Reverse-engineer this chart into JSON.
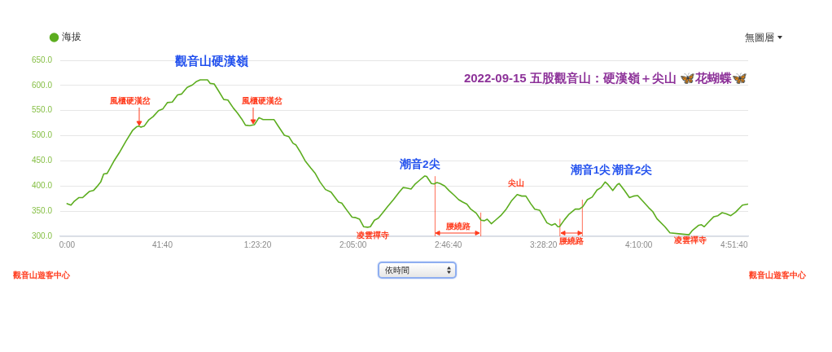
{
  "chart_data": {
    "type": "line",
    "title": "2022-09-15 五股觀音山：硬漢嶺＋尖山 🦋花蝴蝶🦋",
    "x": [
      0,
      1.7,
      3.2,
      5.2,
      6.8,
      8.0,
      9.7,
      11.5,
      13.1,
      14.7,
      16.0,
      17.5,
      20.4,
      22.8,
      25.7,
      28.7,
      30.5,
      31.4,
      32.3,
      33.7,
      35.6,
      37.6,
      40.0,
      41.8,
      43.9,
      46.0,
      48.3,
      50.1,
      52.5,
      54.8,
      56.6,
      58.2,
      61.4,
      62.6,
      64.3,
      66.1,
      68.5,
      70.3,
      72.7,
      74.5,
      76.4,
      78.0,
      79.8,
      81.9,
      83.9,
      85.7,
      90.5,
      92.2,
      95.0,
      97.0,
      98.8,
      100.0,
      101.8,
      104.1,
      106.5,
      108.5,
      110.6,
      113.0,
      115.4,
      117.2,
      118.7,
      120.1,
      122.3,
      124.6,
      126.3,
      127.9,
      129.7,
      131.4,
      132.6,
      134.4,
      136.1,
      137.9,
      140.3,
      142.7,
      145.1,
      146.9,
      148.4,
      150.4,
      152.0,
      154.0,
      156.4,
      157.2,
      159.3,
      160.5,
      161.7,
      163.1,
      165.1,
      167.0,
      169.4,
      171.2,
      173.0,
      174.8,
      176.5,
      178.9,
      181.0,
      182.5,
      183.7,
      185.5,
      187.3,
      189.6,
      192.0,
      194.4,
      196.8,
      198.8,
      200.6,
      202.7,
      204.5,
      206.6,
      208.0,
      209.8,
      211.8,
      213.4,
      214.6,
      215.3,
      217.5,
      219.5,
      222.2,
      224.0,
      225.5,
      227.5,
      229.6,
      231.7,
      233.5,
      235.3,
      236.5,
      238.6,
      240.6,
      241.4,
      243.6,
      245.9,
      247.7,
      249.5,
      251.3,
      254.3,
      256.1,
      257.9,
      261.4,
      263.6,
      267.4,
      271.9,
      273.3,
      276.2,
      277.4,
      278.6,
      280.4,
      282.8,
      284.6,
      286.4,
      288.1,
      290.2,
      292.3,
      295.3,
      297.7
    ],
    "series": [
      {
        "name": "海拔",
        "color": "#5cad1f",
        "values": [
          365,
          362,
          370,
          377,
          377,
          382,
          389,
          391,
          399,
          408,
          424,
          425,
          449,
          466,
          489,
          511,
          518,
          519,
          517,
          519,
          531,
          538,
          550,
          553,
          566,
          567,
          581,
          583,
          596,
          601,
          608,
          611,
          611,
          604,
          603,
          590,
          572,
          571,
          555,
          545,
          533,
          521,
          520,
          522,
          536,
          532,
          532,
          520,
          501,
          498,
          485,
          482,
          469,
          450,
          436,
          425,
          408,
          393,
          388,
          377,
          368,
          366,
          352,
          338,
          337,
          334,
          319,
          318,
          319,
          332,
          336,
          346,
          360,
          373,
          387,
          397,
          396,
          394,
          403,
          411,
          420,
          419,
          405,
          404,
          407,
          405,
          400,
          391,
          381,
          373,
          368,
          364,
          354,
          346,
          332,
          331,
          334,
          325,
          332,
          341,
          354,
          371,
          383,
          380,
          380,
          365,
          354,
          352,
          341,
          327,
          322,
          325,
          319,
          319,
          333,
          344,
          354,
          354,
          359,
          373,
          378,
          392,
          397,
          408,
          403,
          391,
          403,
          405,
          392,
          377,
          380,
          381,
          372,
          357,
          349,
          335,
          319,
          307,
          305,
          303,
          311,
          322,
          323,
          319,
          328,
          339,
          341,
          347,
          345,
          341,
          348,
          362,
          364
        ]
      }
    ],
    "xlim": [
      -3,
      297.8
    ],
    "xticks": [
      {
        "value": 0,
        "label": "0:00"
      },
      {
        "value": 41.667,
        "label": "41:40"
      },
      {
        "value": 83.333,
        "label": "1:23:20"
      },
      {
        "value": 125,
        "label": "2:05:00"
      },
      {
        "value": 166.667,
        "label": "2:46:40"
      },
      {
        "value": 208.333,
        "label": "3:28:20"
      },
      {
        "value": 250,
        "label": "4:10:00"
      },
      {
        "value": 291.667,
        "label": "4:51:40"
      }
    ],
    "ylim": [
      300,
      650
    ],
    "yticks": [
      {
        "value": 300,
        "label": "300.0"
      },
      {
        "value": 350,
        "label": "350.0"
      },
      {
        "value": 400,
        "label": "400.0"
      },
      {
        "value": 450,
        "label": "450.0"
      },
      {
        "value": 500,
        "label": "500.0"
      },
      {
        "value": 550,
        "label": "550.0"
      },
      {
        "value": 600,
        "label": "600.0"
      },
      {
        "value": 650,
        "label": "650.0"
      }
    ],
    "ref_lines": [
      {
        "axis": "x",
        "value": 160.9,
        "color": "#ff3c1e"
      },
      {
        "axis": "x",
        "value": 180.9,
        "color": "#ff3c1e"
      },
      {
        "axis": "x",
        "value": 215.5,
        "color": "#ff3c1e"
      },
      {
        "axis": "x",
        "value": 225.3,
        "color": "#ff3c1e"
      }
    ],
    "annotations": [
      {
        "text": "觀音山硬漢嶺",
        "x": 60,
        "y": 611
      },
      {
        "text": "風櫃硬漢岔",
        "x": 31.4,
        "y": 519
      },
      {
        "text": "風櫃硬漢岔",
        "x": 81.3,
        "y": 522
      },
      {
        "text": "凌雲禪寺",
        "x": 131.4,
        "y": 318
      },
      {
        "text": "潮音2尖",
        "x": 156.4,
        "y": 420
      },
      {
        "text": "尖山",
        "x": 196.8,
        "y": 383
      },
      {
        "text": "潮音1尖",
        "x": 235.3,
        "y": 408
      },
      {
        "text": "潮音2尖",
        "x": 241.4,
        "y": 405
      },
      {
        "text": "凌雲禪寺",
        "x": 271.9,
        "y": 303
      },
      "腰繞路",
      "腰繞路",
      "無圖層",
      "依時間",
      "觀音山遊客中心",
      "觀音山遊客中心"
    ],
    "grid": "y",
    "legend": "top left"
  }
}
